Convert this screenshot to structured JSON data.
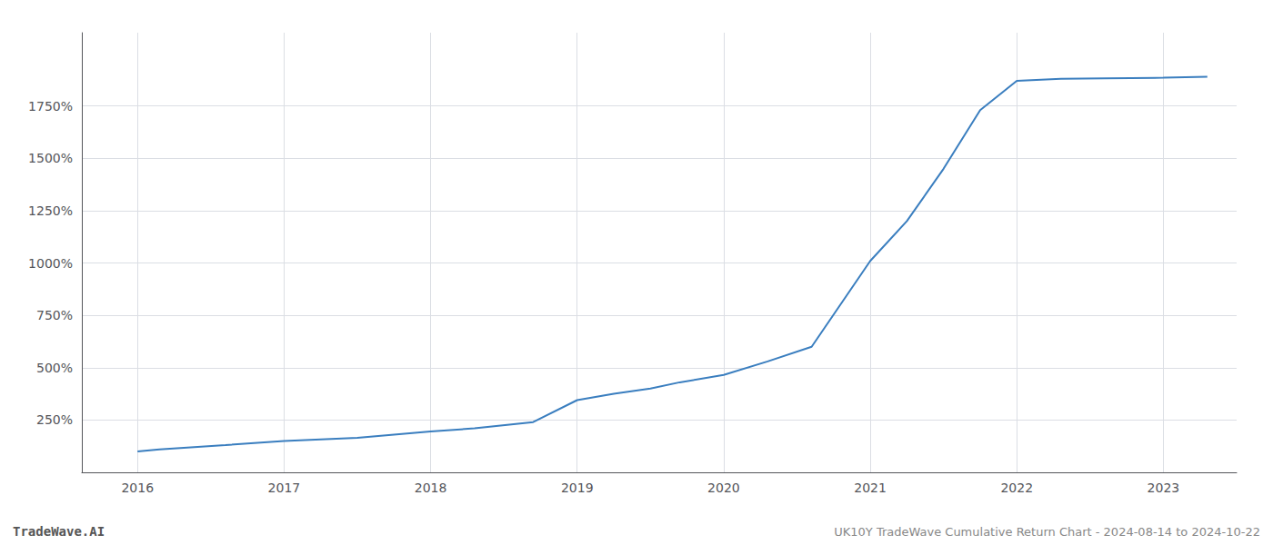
{
  "chart_data": {
    "type": "line",
    "x": [
      2016.0,
      2016.15,
      2016.6,
      2017.0,
      2017.5,
      2018.0,
      2018.3,
      2018.7,
      2019.0,
      2019.25,
      2019.5,
      2019.7,
      2020.0,
      2020.3,
      2020.6,
      2021.0,
      2021.25,
      2021.5,
      2021.75,
      2022.0,
      2022.3,
      2022.6,
      2023.0,
      2023.3
    ],
    "values": [
      100,
      110,
      130,
      150,
      165,
      195,
      210,
      240,
      345,
      375,
      400,
      430,
      465,
      530,
      600,
      1010,
      1200,
      1450,
      1730,
      1870,
      1880,
      1882,
      1885,
      1890
    ],
    "color": "#3a7ebf",
    "xlim": [
      2015.62,
      2023.5
    ],
    "xticks": [
      2016,
      2017,
      2018,
      2019,
      2020,
      2021,
      2022,
      2023
    ],
    "ylim": [
      0,
      2100
    ],
    "yticks": [
      {
        "value": 250,
        "label": "250%"
      },
      {
        "value": 500,
        "label": "500%"
      },
      {
        "value": 750,
        "label": "750%"
      },
      {
        "value": 1000,
        "label": "1000%"
      },
      {
        "value": 1250,
        "label": "1250%"
      },
      {
        "value": 1500,
        "label": "1500%"
      },
      {
        "value": 1750,
        "label": "1750%"
      }
    ],
    "grid": true,
    "annotations": [
      "TradeWave.AI",
      "UK10Y TradeWave Cumulative Return Chart - 2024-08-14 to 2024-10-22"
    ]
  }
}
